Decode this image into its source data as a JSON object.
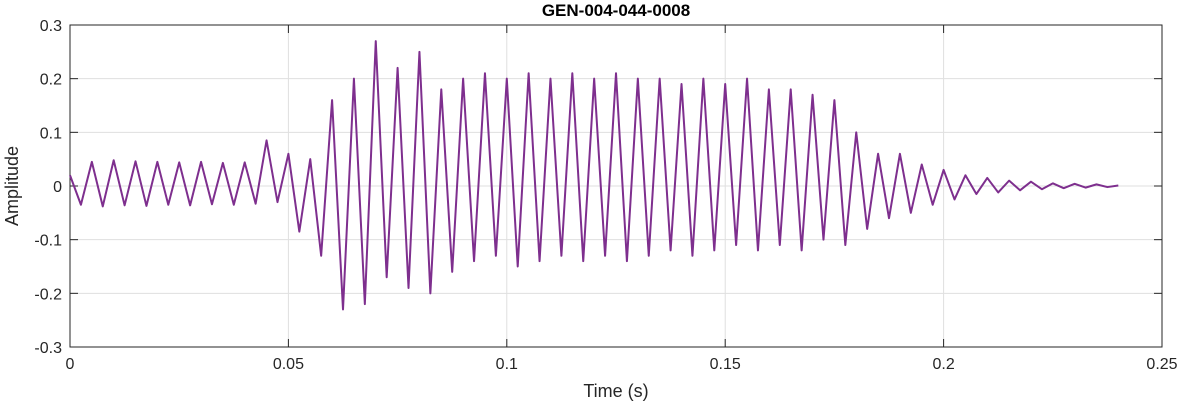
{
  "chart_data": {
    "type": "line",
    "title": "GEN-004-044-0008",
    "xlabel": "Time (s)",
    "ylabel": "Amplitude",
    "xlim": [
      0,
      0.25
    ],
    "ylim": [
      -0.3,
      0.3
    ],
    "xticks": [
      0,
      0.05,
      0.1,
      0.15,
      0.2,
      0.25
    ],
    "xtick_labels": [
      "0",
      "0.05",
      "0.1",
      "0.15",
      "0.2",
      "0.25"
    ],
    "yticks": [
      -0.3,
      -0.2,
      -0.1,
      0,
      0.1,
      0.2,
      0.3
    ],
    "ytick_labels": [
      "-0.3",
      "-0.2",
      "-0.1",
      "0",
      "0.1",
      "0.2",
      "0.3"
    ],
    "grid": true,
    "line_color": "#7E2F8E",
    "series": [
      {
        "x": [
          0,
          0.0025,
          0.005,
          0.0075,
          0.01,
          0.0125,
          0.015,
          0.0175,
          0.02,
          0.0225,
          0.025,
          0.0275,
          0.03,
          0.0325,
          0.035,
          0.0375,
          0.04,
          0.0425,
          0.045,
          0.0475,
          0.05,
          0.0525,
          0.055,
          0.0575,
          0.06,
          0.0625,
          0.065,
          0.0675,
          0.07,
          0.0725,
          0.075,
          0.0775,
          0.08,
          0.0825,
          0.085,
          0.0875,
          0.09,
          0.0925,
          0.095,
          0.0975,
          0.1,
          0.1025,
          0.105,
          0.1075,
          0.11,
          0.1125,
          0.115,
          0.1175,
          0.12,
          0.1225,
          0.125,
          0.1275,
          0.13,
          0.1325,
          0.135,
          0.1375,
          0.14,
          0.1425,
          0.145,
          0.1475,
          0.15,
          0.1525,
          0.155,
          0.1575,
          0.16,
          0.1625,
          0.165,
          0.1675,
          0.17,
          0.1725,
          0.175,
          0.1775,
          0.18,
          0.1825,
          0.185,
          0.1875,
          0.19,
          0.1925,
          0.195,
          0.1975,
          0.2,
          0.2025,
          0.205,
          0.2075,
          0.21,
          0.2125,
          0.215,
          0.2175,
          0.22,
          0.2225,
          0.225,
          0.2275,
          0.23,
          0.2325,
          0.235,
          0.2375,
          0.24
        ],
        "y": [
          0.02,
          -0.035,
          0.045,
          -0.038,
          0.048,
          -0.036,
          0.046,
          -0.037,
          0.045,
          -0.035,
          0.044,
          -0.036,
          0.045,
          -0.034,
          0.043,
          -0.035,
          0.044,
          -0.033,
          0.085,
          -0.03,
          0.06,
          -0.085,
          0.05,
          -0.13,
          0.16,
          -0.23,
          0.2,
          -0.22,
          0.27,
          -0.17,
          0.22,
          -0.19,
          0.25,
          -0.2,
          0.18,
          -0.16,
          0.2,
          -0.14,
          0.21,
          -0.13,
          0.2,
          -0.15,
          0.21,
          -0.14,
          0.2,
          -0.13,
          0.21,
          -0.14,
          0.2,
          -0.13,
          0.21,
          -0.14,
          0.2,
          -0.13,
          0.2,
          -0.12,
          0.19,
          -0.13,
          0.2,
          -0.12,
          0.19,
          -0.11,
          0.2,
          -0.12,
          0.18,
          -0.11,
          0.18,
          -0.12,
          0.17,
          -0.1,
          0.16,
          -0.11,
          0.1,
          -0.08,
          0.06,
          -0.06,
          0.06,
          -0.05,
          0.04,
          -0.035,
          0.03,
          -0.025,
          0.02,
          -0.015,
          0.015,
          -0.012,
          0.01,
          -0.008,
          0.008,
          -0.006,
          0.005,
          -0.004,
          0.004,
          -0.003,
          0.003,
          -0.002,
          0.001
        ]
      }
    ]
  }
}
